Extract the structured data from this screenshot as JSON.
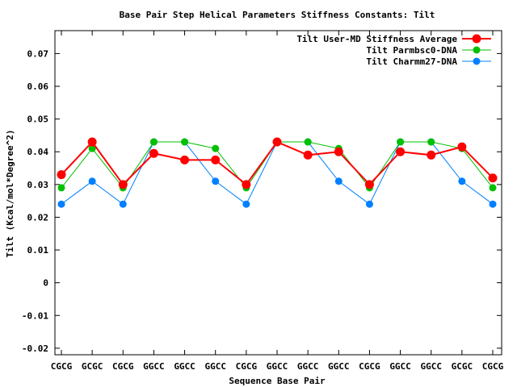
{
  "chart_data": {
    "type": "line",
    "title": "Base Pair Step Helical Parameters Stiffness Constants: Tilt",
    "xlabel": "Sequence Base Pair",
    "ylabel": "Tilt (Kcal/mol*Degree^2)",
    "ylim": [
      -0.022,
      0.077
    ],
    "yticks": [
      "0.07",
      "0.06",
      "0.05",
      "0.04",
      "0.03",
      "0.02",
      "0.01",
      "0",
      "-0.01",
      "-0.02"
    ],
    "ytick_values": [
      0.07,
      0.06,
      0.05,
      0.04,
      0.03,
      0.02,
      0.01,
      0,
      -0.01,
      -0.02
    ],
    "categories": [
      "CGCG",
      "GCGC",
      "CGCG",
      "GGCC",
      "GGCC",
      "GGCC",
      "CGCG",
      "GGCC",
      "GGCC",
      "GGCC",
      "CGCG",
      "GGCC",
      "GGCC",
      "GCGC",
      "CGCG"
    ],
    "legend_position": "top-right",
    "grid": false,
    "series": [
      {
        "name": "Tilt User-MD Stiffness Average",
        "color": "#ff0000",
        "values": [
          0.033,
          0.043,
          0.03,
          0.0395,
          0.0375,
          0.0375,
          0.03,
          0.043,
          0.039,
          0.04,
          0.03,
          0.04,
          0.039,
          0.0415,
          0.032
        ]
      },
      {
        "name": "Tilt Parmbsc0-DNA",
        "color": "#00c000",
        "values": [
          0.029,
          0.041,
          0.029,
          0.043,
          0.043,
          0.041,
          0.029,
          0.043,
          0.043,
          0.041,
          0.029,
          0.043,
          0.043,
          0.041,
          0.029
        ]
      },
      {
        "name": "Tilt Charmm27-DNA",
        "color": "#0080ff",
        "values": [
          0.024,
          0.031,
          0.024,
          0.043,
          0.043,
          0.031,
          0.024,
          0.043,
          0.043,
          0.031,
          0.024,
          0.043,
          0.043,
          0.031,
          0.024
        ]
      }
    ]
  }
}
